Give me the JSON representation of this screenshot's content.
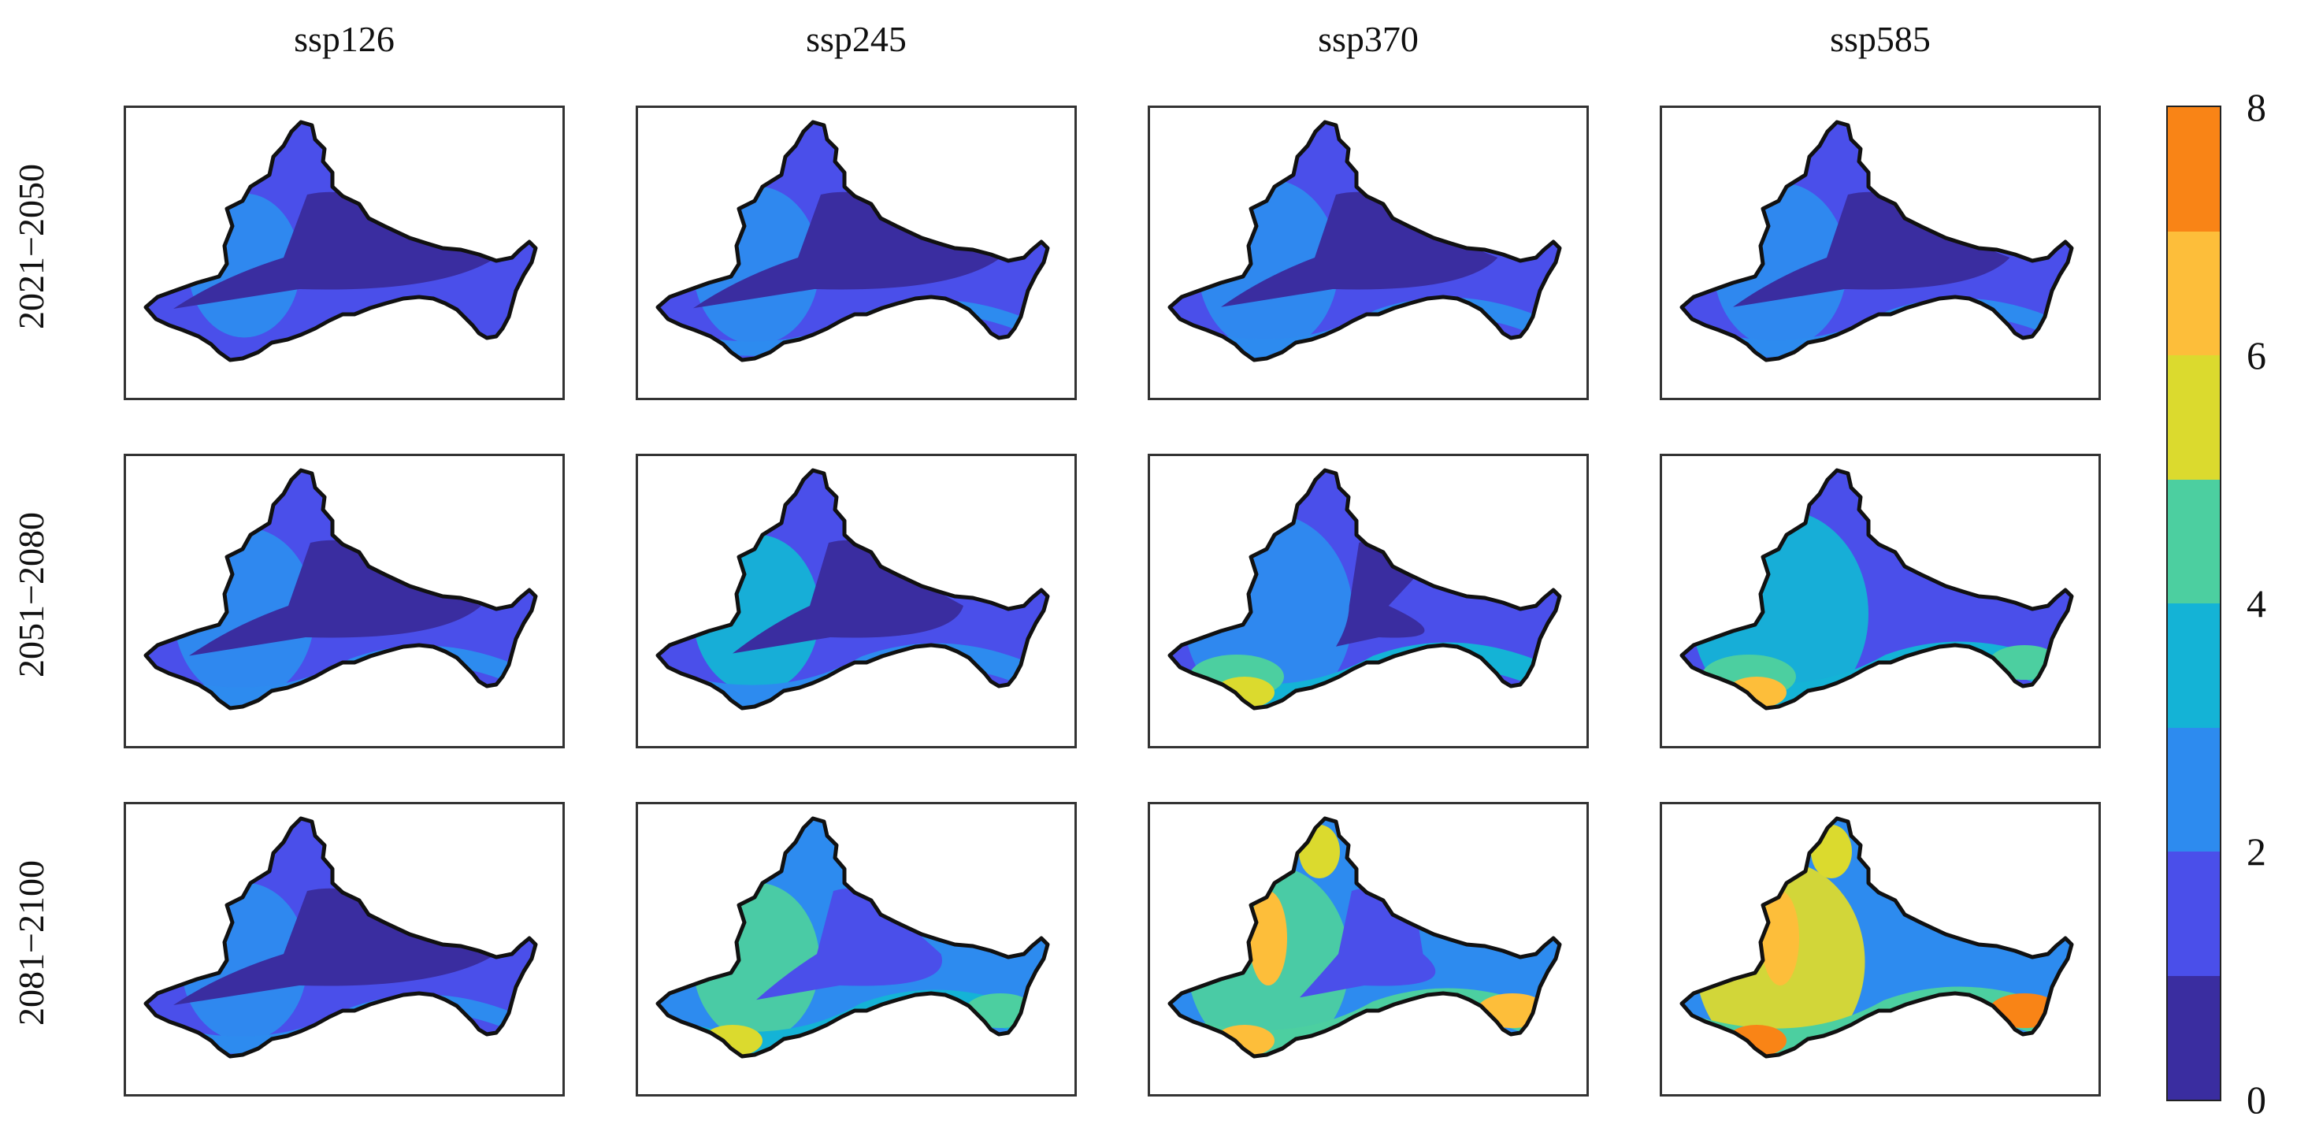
{
  "chart_data": {
    "type": "heatmap",
    "layout": "3 rows x 4 columns of basin maps with shared discrete colorbar",
    "columns": [
      "ssp126",
      "ssp245",
      "ssp370",
      "ssp585"
    ],
    "rows": [
      "2021−2050",
      "2051−2080",
      "2081−2100"
    ],
    "colorbar": {
      "min": 0,
      "max": 8,
      "tick_labels": [
        "0",
        "2",
        "4",
        "6",
        "8"
      ],
      "levels": [
        {
          "from": 0,
          "to": 1,
          "color": "#3A2DA0"
        },
        {
          "from": 1,
          "to": 2,
          "color": "#4A4FEA"
        },
        {
          "from": 2,
          "to": 3,
          "color": "#2D8BEF"
        },
        {
          "from": 3,
          "to": 4,
          "color": "#14B3D6"
        },
        {
          "from": 4,
          "to": 5,
          "color": "#4CCFA0"
        },
        {
          "from": 5,
          "to": 6,
          "color": "#DBDA2E"
        },
        {
          "from": 6,
          "to": 7,
          "color": "#FDBE3A"
        },
        {
          "from": 7,
          "to": 8,
          "color": "#F98416"
        }
      ]
    },
    "panels": [
      [
        {
          "scenario": "ssp126",
          "period": "2021−2050",
          "base_level": 1,
          "core_level": 0,
          "core_size": 1.0,
          "south_level": 1,
          "south_extent": 0.0,
          "west_level": 2,
          "west_extent": 0.35,
          "hotspots": []
        },
        {
          "scenario": "ssp245",
          "period": "2021−2050",
          "base_level": 1,
          "core_level": 0,
          "core_size": 0.95,
          "south_level": 2,
          "south_extent": 0.2,
          "west_level": 2,
          "west_extent": 0.45,
          "hotspots": []
        },
        {
          "scenario": "ssp370",
          "period": "2021−2050",
          "base_level": 1,
          "core_level": 0,
          "core_size": 0.85,
          "south_level": 2,
          "south_extent": 0.35,
          "west_level": 2,
          "west_extent": 0.55,
          "hotspots": []
        },
        {
          "scenario": "ssp585",
          "period": "2021−2050",
          "base_level": 1,
          "core_level": 0,
          "core_size": 0.85,
          "south_level": 2,
          "south_extent": 0.3,
          "west_level": 2,
          "west_extent": 0.5,
          "hotspots": []
        }
      ],
      [
        {
          "scenario": "ssp126",
          "period": "2051−2080",
          "base_level": 1,
          "core_level": 0,
          "core_size": 0.9,
          "south_level": 2,
          "south_extent": 0.35,
          "west_level": 2,
          "west_extent": 0.55,
          "hotspots": []
        },
        {
          "scenario": "ssp245",
          "period": "2051−2080",
          "base_level": 1,
          "core_level": 0,
          "core_size": 0.7,
          "south_level": 2,
          "south_extent": 0.5,
          "west_level": 3,
          "west_extent": 0.45,
          "hotspots": []
        },
        {
          "scenario": "ssp370",
          "period": "2051−2080",
          "base_level": 1,
          "core_level": 0,
          "core_size": 0.12,
          "south_level": 3,
          "south_extent": 0.55,
          "west_level": 2,
          "west_extent": 0.75,
          "hotspots": [
            {
              "level": 4,
              "pos": "southwest"
            },
            {
              "level": 5,
              "pos": "southwest-tip"
            }
          ]
        },
        {
          "scenario": "ssp585",
          "period": "2051−2080",
          "base_level": 1,
          "core_level": 1,
          "core_size": 0.0,
          "south_level": 3,
          "south_extent": 0.6,
          "west_level": 3,
          "west_extent": 0.8,
          "hotspots": [
            {
              "level": 4,
              "pos": "southwest"
            },
            {
              "level": 6,
              "pos": "southwest-tip"
            },
            {
              "level": 4,
              "pos": "southeast"
            }
          ]
        }
      ],
      [
        {
          "scenario": "ssp126",
          "period": "2081−2100",
          "base_level": 1,
          "core_level": 0,
          "core_size": 1.0,
          "south_level": 2,
          "south_extent": 0.3,
          "west_level": 2,
          "west_extent": 0.45,
          "hotspots": []
        },
        {
          "scenario": "ssp245",
          "period": "2081−2100",
          "base_level": 2,
          "core_level": 1,
          "core_size": 0.55,
          "south_level": 3,
          "south_extent": 0.6,
          "west_level": 4,
          "west_extent": 0.45,
          "hotspots": [
            {
              "level": 5,
              "pos": "southwest-tip"
            },
            {
              "level": 4,
              "pos": "southeast"
            }
          ]
        },
        {
          "scenario": "ssp370",
          "period": "2081−2100",
          "base_level": 2,
          "core_level": 1,
          "core_size": 0.35,
          "south_level": 4,
          "south_extent": 0.7,
          "west_level": 4,
          "west_extent": 0.7,
          "hotspots": [
            {
              "level": 6,
              "pos": "northwest"
            },
            {
              "level": 6,
              "pos": "southwest-tip"
            },
            {
              "level": 6,
              "pos": "southeast"
            },
            {
              "level": 5,
              "pos": "north"
            }
          ]
        },
        {
          "scenario": "ssp585",
          "period": "2081−2100",
          "base_level": 2,
          "core_level": 2,
          "core_size": 0.0,
          "south_level": 4,
          "south_extent": 0.8,
          "west_level": 5,
          "west_extent": 0.75,
          "hotspots": [
            {
              "level": 6,
              "pos": "northwest"
            },
            {
              "level": 7,
              "pos": "southwest-tip"
            },
            {
              "level": 7,
              "pos": "southeast"
            },
            {
              "level": 5,
              "pos": "north"
            }
          ]
        }
      ]
    ]
  }
}
